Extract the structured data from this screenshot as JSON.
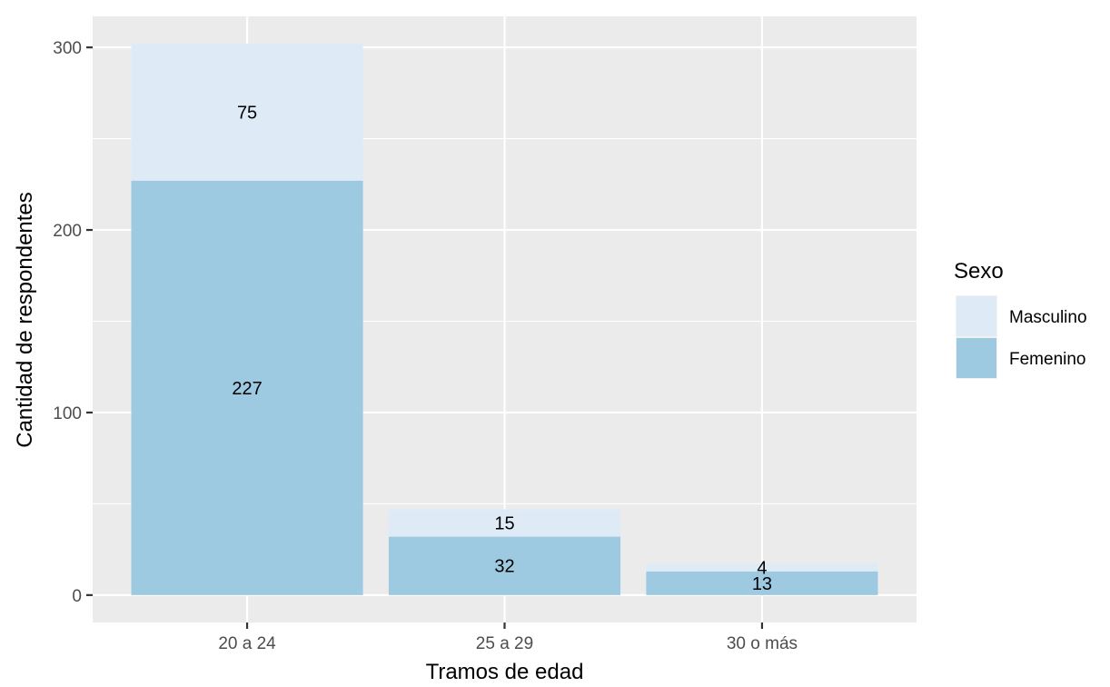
{
  "chart_data": {
    "type": "bar",
    "stacked": true,
    "xlabel": "Tramos de edad",
    "ylabel": "Cantidad de respondentes",
    "categories": [
      "20 a 24",
      "25 a 29",
      "30 o más"
    ],
    "series": [
      {
        "name": "Femenino",
        "values": [
          227,
          32,
          13
        ],
        "color": "#9ecae1"
      },
      {
        "name": "Masculino",
        "values": [
          75,
          15,
          4
        ],
        "color": "#deebf7"
      }
    ],
    "y_ticks": [
      0,
      100,
      200,
      300
    ],
    "ylim": [
      -15,
      317
    ],
    "grid": true,
    "panel_background": "#ebebeb",
    "legend": {
      "title": "Sexo",
      "position": "right",
      "order": [
        "Masculino",
        "Femenino"
      ]
    }
  }
}
